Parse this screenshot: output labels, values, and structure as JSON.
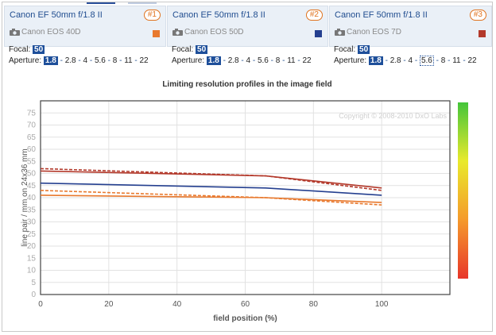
{
  "panels": [
    {
      "lens": "Canon EF 50mm f/1.8 II",
      "num": "#1",
      "camera": "Canon EOS 40D",
      "color": "#e8792e",
      "focal_label": "Focal:",
      "focal": "50",
      "aperture_label": "Aperture:",
      "apertures": [
        "1.8",
        "2.8",
        "4",
        "5.6",
        "8",
        "11",
        "22"
      ],
      "selected": "1.8"
    },
    {
      "lens": "Canon EF 50mm f/1.8 II",
      "num": "#2",
      "camera": "Canon EOS 50D",
      "color": "#243f8f",
      "focal_label": "Focal:",
      "focal": "50",
      "aperture_label": "Aperture:",
      "apertures": [
        "1.8",
        "2.8",
        "4",
        "5.6",
        "8",
        "11",
        "22"
      ],
      "selected": "1.8"
    },
    {
      "lens": "Canon EF 50mm f/1.8 II",
      "num": "#3",
      "camera": "Canon EOS 7D",
      "color": "#b3392b",
      "focal_label": "Focal:",
      "focal": "50",
      "aperture_label": "Aperture:",
      "apertures": [
        "1.8",
        "2.8",
        "4",
        "5.6",
        "8",
        "11",
        "22"
      ],
      "selected": "1.8",
      "hovered": "5.6"
    }
  ],
  "chart_data": {
    "type": "line",
    "title": "Limiting resolution profiles in the image field",
    "xlabel": "field position (%)",
    "ylabel": "line pair / mm on 24x36 mm",
    "watermark": "Copyright © 2008-2010 DxO Labs",
    "xlim": [
      0,
      120
    ],
    "ylim": [
      0,
      80
    ],
    "xticks": [
      0,
      20,
      40,
      60,
      80,
      100
    ],
    "yticks": [
      0,
      5,
      10,
      15,
      20,
      25,
      30,
      35,
      40,
      45,
      50,
      55,
      60,
      65,
      70,
      75
    ],
    "grid": true,
    "series": [
      {
        "color": "#e8792e",
        "style": "solid",
        "x": [
          0,
          66,
          100
        ],
        "y": [
          41,
          40,
          38
        ]
      },
      {
        "color": "#e8792e",
        "style": "dashed",
        "x": [
          0,
          66,
          100
        ],
        "y": [
          43,
          40,
          37
        ]
      },
      {
        "color": "#243f8f",
        "style": "solid",
        "x": [
          0,
          66,
          100
        ],
        "y": [
          46,
          44,
          41
        ]
      },
      {
        "color": "#b3392b",
        "style": "solid",
        "x": [
          0,
          66,
          100
        ],
        "y": [
          51,
          49,
          44
        ]
      },
      {
        "color": "#b3392b",
        "style": "dashed",
        "x": [
          0,
          66,
          100
        ],
        "y": [
          52,
          49,
          43
        ]
      }
    ],
    "colorbar": [
      "#44c53b",
      "#e9ea2c",
      "#f59a2c",
      "#e8362a"
    ]
  }
}
